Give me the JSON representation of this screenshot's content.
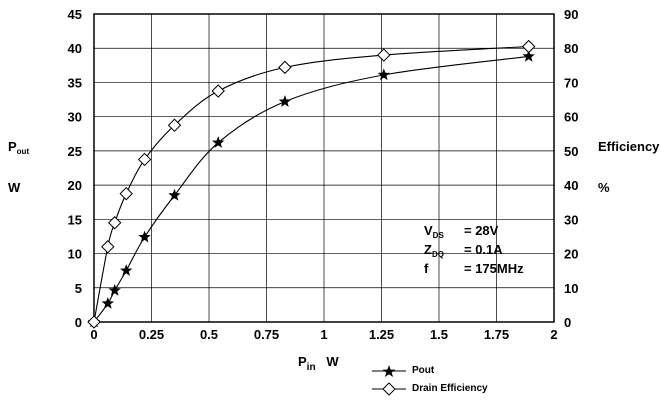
{
  "chart_data": {
    "type": "line",
    "xlabel_main": "P",
    "xlabel_sub": "in",
    "xlabel_unit": "W",
    "ylabel_left_main": "P",
    "ylabel_left_sub": "out",
    "ylabel_left_unit": "W",
    "ylabel_right": "Efficiency",
    "ylabel_right_unit": "%",
    "xlim": [
      0,
      2
    ],
    "ylim_left": [
      0,
      45
    ],
    "ylim_right": [
      0,
      90
    ],
    "x_ticks": [
      "0",
      "0.25",
      "0.5",
      "0.75",
      "1",
      "1.25",
      "1.5",
      "1.75",
      "2"
    ],
    "y_left_ticks": [
      "0",
      "5",
      "10",
      "15",
      "20",
      "25",
      "30",
      "35",
      "40",
      "45"
    ],
    "y_right_ticks": [
      "0",
      "10",
      "20",
      "30",
      "40",
      "50",
      "60",
      "70",
      "80",
      "90"
    ],
    "grid": true,
    "legend_position": "bottom-right, below plot",
    "series": [
      {
        "name": "Pout",
        "axis": "left",
        "marker": "star",
        "x": [
          0,
          0.06,
          0.09,
          0.14,
          0.22,
          0.35,
          0.54,
          0.83,
          1.26,
          1.89
        ],
        "y": [
          0,
          2.7,
          4.6,
          7.5,
          12.4,
          18.5,
          26.2,
          32.2,
          36.1,
          38.8
        ]
      },
      {
        "name": "Drain Efficiency",
        "axis": "right",
        "marker": "diamond",
        "x": [
          0,
          0.06,
          0.09,
          0.14,
          0.22,
          0.35,
          0.54,
          0.83,
          1.26,
          1.89
        ],
        "y": [
          0,
          22,
          29,
          37.5,
          47.5,
          57.5,
          67.5,
          74.4,
          78,
          80.5
        ]
      }
    ],
    "annotation": [
      {
        "main": "V",
        "sub": "DS",
        "value": "= 28V"
      },
      {
        "main": "Z",
        "sub": "DQ",
        "value": "= 0.1A"
      },
      {
        "main": "f",
        "sub": "",
        "value": "= 175MHz"
      }
    ]
  }
}
